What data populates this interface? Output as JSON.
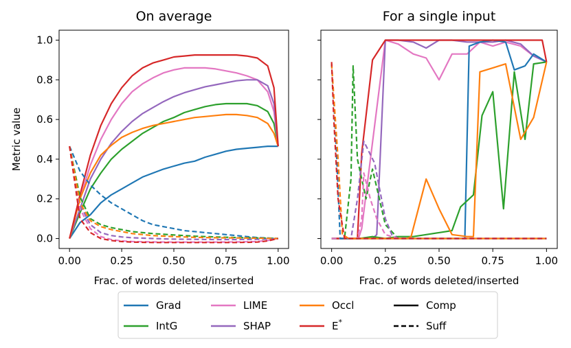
{
  "colors": {
    "Grad": "#1f77b4",
    "IntG": "#2ca02c",
    "LIME": "#e377c2",
    "SHAP": "#9467bd",
    "Occl": "#ff7f0e",
    "E*": "#d62728",
    "axis": "#000000"
  },
  "legend": {
    "placement": "bottom-center",
    "items": [
      {
        "label": "Grad",
        "color_key": "Grad",
        "style": "solid"
      },
      {
        "label": "IntG",
        "color_key": "IntG",
        "style": "solid"
      },
      {
        "label": "LIME",
        "color_key": "LIME",
        "style": "solid"
      },
      {
        "label": "SHAP",
        "color_key": "SHAP",
        "style": "solid"
      },
      {
        "label": "Occl",
        "color_key": "Occl",
        "style": "solid"
      },
      {
        "label": "E*",
        "color_key": "E*",
        "style": "solid"
      },
      {
        "label": "Comp",
        "color_key": "axis",
        "style": "solid"
      },
      {
        "label": "Suff",
        "color_key": "axis",
        "style": "dashed"
      }
    ]
  },
  "chart_data": [
    {
      "type": "line",
      "title": "On average",
      "xlabel": "Frac. of words deleted/inserted",
      "ylabel": "Metric value",
      "xlim": [
        -0.05,
        1.05
      ],
      "ylim": [
        -0.05,
        1.05
      ],
      "xticks": [
        0.0,
        0.25,
        0.5,
        0.75,
        1.0
      ],
      "xtick_labels": [
        "0.00",
        "0.25",
        "0.50",
        "0.75",
        "1.00"
      ],
      "yticks": [
        0.0,
        0.2,
        0.4,
        0.6,
        0.8,
        1.0
      ],
      "ytick_labels": [
        "0.0",
        "0.2",
        "0.4",
        "0.6",
        "0.8",
        "1.0"
      ],
      "show_yticklabels": true,
      "series": [
        {
          "name": "Grad",
          "metric": "Comp",
          "x": [
            0,
            0.05,
            0.1,
            0.15,
            0.2,
            0.25,
            0.3,
            0.35,
            0.4,
            0.45,
            0.5,
            0.55,
            0.6,
            0.65,
            0.7,
            0.75,
            0.8,
            0.85,
            0.9,
            0.95,
            1.0
          ],
          "y": [
            0.0,
            0.08,
            0.12,
            0.18,
            0.22,
            0.25,
            0.28,
            0.31,
            0.33,
            0.35,
            0.365,
            0.38,
            0.39,
            0.41,
            0.425,
            0.44,
            0.45,
            0.455,
            0.46,
            0.465,
            0.465
          ]
        },
        {
          "name": "IntG",
          "metric": "Comp",
          "x": [
            0,
            0.05,
            0.1,
            0.15,
            0.2,
            0.25,
            0.3,
            0.35,
            0.4,
            0.45,
            0.5,
            0.55,
            0.6,
            0.65,
            0.7,
            0.75,
            0.8,
            0.85,
            0.9,
            0.95,
            0.98,
            1.0
          ],
          "y": [
            0.0,
            0.13,
            0.25,
            0.33,
            0.4,
            0.45,
            0.49,
            0.53,
            0.56,
            0.59,
            0.61,
            0.635,
            0.65,
            0.665,
            0.675,
            0.68,
            0.68,
            0.68,
            0.67,
            0.64,
            0.58,
            0.465
          ]
        },
        {
          "name": "LIME",
          "metric": "Comp",
          "x": [
            0,
            0.05,
            0.1,
            0.15,
            0.2,
            0.25,
            0.3,
            0.35,
            0.4,
            0.45,
            0.5,
            0.55,
            0.6,
            0.65,
            0.7,
            0.75,
            0.8,
            0.85,
            0.9,
            0.95,
            0.98,
            1.0
          ],
          "y": [
            0.0,
            0.2,
            0.37,
            0.5,
            0.6,
            0.68,
            0.74,
            0.78,
            0.81,
            0.835,
            0.85,
            0.86,
            0.86,
            0.86,
            0.855,
            0.845,
            0.835,
            0.82,
            0.8,
            0.74,
            0.64,
            0.465
          ]
        },
        {
          "name": "SHAP",
          "metric": "Comp",
          "x": [
            0,
            0.05,
            0.1,
            0.15,
            0.2,
            0.25,
            0.3,
            0.35,
            0.4,
            0.45,
            0.5,
            0.55,
            0.6,
            0.65,
            0.7,
            0.75,
            0.8,
            0.85,
            0.9,
            0.95,
            0.98,
            1.0
          ],
          "y": [
            0.0,
            0.15,
            0.3,
            0.4,
            0.48,
            0.54,
            0.59,
            0.63,
            0.66,
            0.69,
            0.715,
            0.735,
            0.75,
            0.765,
            0.775,
            0.785,
            0.795,
            0.8,
            0.8,
            0.77,
            0.68,
            0.465
          ]
        },
        {
          "name": "Occl",
          "metric": "Comp",
          "x": [
            0,
            0.05,
            0.1,
            0.15,
            0.2,
            0.25,
            0.3,
            0.35,
            0.4,
            0.45,
            0.5,
            0.55,
            0.6,
            0.65,
            0.7,
            0.75,
            0.8,
            0.85,
            0.9,
            0.95,
            0.98,
            1.0
          ],
          "y": [
            0.0,
            0.2,
            0.33,
            0.42,
            0.47,
            0.51,
            0.535,
            0.555,
            0.57,
            0.58,
            0.59,
            0.6,
            0.61,
            0.615,
            0.62,
            0.625,
            0.625,
            0.62,
            0.61,
            0.58,
            0.53,
            0.465
          ]
        },
        {
          "name": "E*",
          "metric": "Comp",
          "x": [
            0,
            0.05,
            0.1,
            0.15,
            0.2,
            0.25,
            0.3,
            0.35,
            0.4,
            0.45,
            0.5,
            0.55,
            0.6,
            0.65,
            0.7,
            0.75,
            0.8,
            0.85,
            0.9,
            0.95,
            0.98,
            1.0
          ],
          "y": [
            0.0,
            0.22,
            0.42,
            0.57,
            0.68,
            0.76,
            0.82,
            0.86,
            0.885,
            0.9,
            0.915,
            0.92,
            0.925,
            0.925,
            0.925,
            0.925,
            0.925,
            0.92,
            0.91,
            0.87,
            0.76,
            0.465
          ]
        },
        {
          "name": "Grad",
          "metric": "Suff",
          "x": [
            0,
            0.05,
            0.1,
            0.15,
            0.2,
            0.25,
            0.3,
            0.35,
            0.4,
            0.45,
            0.5,
            0.55,
            0.6,
            0.65,
            0.7,
            0.75,
            0.8,
            0.85,
            0.9,
            0.95,
            1.0
          ],
          "y": [
            0.465,
            0.34,
            0.27,
            0.22,
            0.18,
            0.15,
            0.12,
            0.09,
            0.07,
            0.06,
            0.05,
            0.04,
            0.035,
            0.03,
            0.025,
            0.02,
            0.015,
            0.01,
            0.005,
            0.003,
            0.0
          ]
        },
        {
          "name": "IntG",
          "metric": "Suff",
          "x": [
            0,
            0.05,
            0.1,
            0.15,
            0.2,
            0.25,
            0.3,
            0.4,
            0.5,
            0.6,
            0.7,
            0.8,
            0.9,
            0.95,
            1.0
          ],
          "y": [
            0.465,
            0.21,
            0.1,
            0.07,
            0.055,
            0.045,
            0.035,
            0.025,
            0.018,
            0.012,
            0.008,
            0.005,
            0.003,
            0.002,
            0.0
          ]
        },
        {
          "name": "LIME",
          "metric": "Suff",
          "x": [
            0,
            0.05,
            0.1,
            0.15,
            0.2,
            0.25,
            0.3,
            0.4,
            0.5,
            0.6,
            0.7,
            0.8,
            0.9,
            0.95,
            1.0
          ],
          "y": [
            0.465,
            0.15,
            0.05,
            0.01,
            -0.005,
            -0.012,
            -0.015,
            -0.017,
            -0.018,
            -0.018,
            -0.018,
            -0.017,
            -0.015,
            -0.01,
            0.0
          ]
        },
        {
          "name": "SHAP",
          "metric": "Suff",
          "x": [
            0,
            0.05,
            0.1,
            0.15,
            0.2,
            0.25,
            0.3,
            0.4,
            0.5,
            0.6,
            0.7,
            0.8,
            0.9,
            0.95,
            1.0
          ],
          "y": [
            0.465,
            0.17,
            0.07,
            0.03,
            0.015,
            0.008,
            0.004,
            0.0,
            -0.003,
            -0.004,
            -0.005,
            -0.005,
            -0.004,
            -0.003,
            0.0
          ]
        },
        {
          "name": "Occl",
          "metric": "Suff",
          "x": [
            0,
            0.05,
            0.1,
            0.15,
            0.2,
            0.25,
            0.3,
            0.4,
            0.5,
            0.6,
            0.7,
            0.8,
            0.9,
            0.95,
            1.0
          ],
          "y": [
            0.465,
            0.18,
            0.09,
            0.06,
            0.045,
            0.035,
            0.025,
            0.015,
            0.01,
            0.006,
            0.004,
            0.003,
            0.002,
            0.001,
            0.0
          ]
        },
        {
          "name": "E*",
          "metric": "Suff",
          "x": [
            0,
            0.05,
            0.1,
            0.15,
            0.2,
            0.25,
            0.3,
            0.4,
            0.5,
            0.6,
            0.7,
            0.8,
            0.9,
            0.95,
            1.0
          ],
          "y": [
            0.465,
            0.1,
            0.03,
            0.0,
            -0.01,
            -0.015,
            -0.018,
            -0.02,
            -0.02,
            -0.02,
            -0.02,
            -0.02,
            -0.018,
            -0.012,
            0.0
          ]
        }
      ]
    },
    {
      "type": "line",
      "title": "For a single input",
      "xlabel": "Frac. of words deleted/inserted",
      "ylabel": "",
      "xlim": [
        -0.05,
        1.05
      ],
      "ylim": [
        -0.05,
        1.05
      ],
      "xticks": [
        0.0,
        0.25,
        0.5,
        0.75,
        1.0
      ],
      "xtick_labels": [
        "0.00",
        "0.25",
        "0.50",
        "0.75",
        "1.00"
      ],
      "yticks": [
        0.0,
        0.2,
        0.4,
        0.6,
        0.8,
        1.0
      ],
      "ytick_labels": [
        "",
        "",
        "",
        "",
        "",
        ""
      ],
      "show_yticklabels": false,
      "series": [
        {
          "name": "LIME",
          "metric": "Comp",
          "x": [
            0,
            0.125,
            0.14,
            0.25,
            0.31,
            0.38,
            0.44,
            0.5,
            0.56,
            0.63,
            0.69,
            0.75,
            0.81,
            0.88,
            0.94,
            1.0
          ],
          "y": [
            0.0,
            0.0,
            0.05,
            1.0,
            0.98,
            0.93,
            0.91,
            0.8,
            0.93,
            0.93,
            0.99,
            0.97,
            0.99,
            0.97,
            0.92,
            0.89
          ]
        },
        {
          "name": "SHAP",
          "metric": "Comp",
          "x": [
            0,
            0.19,
            0.21,
            0.25,
            0.31,
            0.38,
            0.44,
            0.5,
            0.56,
            0.63,
            0.69,
            0.75,
            0.81,
            0.88,
            0.94,
            1.0
          ],
          "y": [
            0.0,
            0.0,
            0.02,
            1.0,
            1.0,
            0.99,
            0.96,
            1.0,
            1.0,
            0.99,
            0.99,
            0.99,
            1.0,
            0.98,
            0.92,
            0.89
          ]
        },
        {
          "name": "Grad",
          "metric": "Comp",
          "x": [
            0,
            0.5,
            0.62,
            0.64,
            0.69,
            0.75,
            0.81,
            0.85,
            0.9,
            0.94,
            1.0
          ],
          "y": [
            0.0,
            0.0,
            0.0,
            0.97,
            0.99,
            1.0,
            0.99,
            0.85,
            0.87,
            0.93,
            0.89
          ]
        },
        {
          "name": "IntG",
          "metric": "Comp",
          "x": [
            0,
            0.13,
            0.19,
            0.25,
            0.31,
            0.38,
            0.44,
            0.5,
            0.56,
            0.6,
            0.66,
            0.7,
            0.75,
            0.8,
            0.85,
            0.9,
            0.94,
            1.0
          ],
          "y": [
            0.0,
            0.0,
            0.01,
            0.0,
            0.01,
            0.01,
            0.02,
            0.03,
            0.04,
            0.16,
            0.22,
            0.62,
            0.74,
            0.15,
            0.84,
            0.5,
            0.88,
            0.89
          ]
        },
        {
          "name": "Occl",
          "metric": "Comp",
          "x": [
            0,
            0.35,
            0.37,
            0.44,
            0.5,
            0.56,
            0.63,
            0.66,
            0.69,
            0.75,
            0.81,
            0.88,
            0.94,
            1.0
          ],
          "y": [
            0.0,
            0.0,
            0.01,
            0.3,
            0.15,
            0.02,
            0.01,
            0.01,
            0.84,
            0.86,
            0.88,
            0.5,
            0.61,
            0.89
          ]
        },
        {
          "name": "E*",
          "metric": "Comp",
          "x": [
            0,
            0.12,
            0.14,
            0.19,
            0.25,
            0.5,
            0.75,
            0.98,
            1.0
          ],
          "y": [
            0.0,
            0.0,
            0.43,
            0.9,
            1.0,
            1.0,
            1.0,
            1.0,
            0.89
          ]
        },
        {
          "name": "IntG",
          "metric": "Suff",
          "x": [
            0,
            0.06,
            0.09,
            0.1,
            0.12,
            0.16,
            0.19,
            0.25,
            0.31,
            0.37,
            1.0
          ],
          "y": [
            0.0,
            0.0,
            0.3,
            0.87,
            0.4,
            0.2,
            0.35,
            0.07,
            0.0,
            0.0,
            0.0
          ]
        },
        {
          "name": "SHAP",
          "metric": "Suff",
          "x": [
            0,
            0.09,
            0.12,
            0.15,
            0.2,
            0.25,
            0.28,
            0.31,
            1.0
          ],
          "y": [
            0.0,
            0.0,
            0.2,
            0.49,
            0.38,
            0.1,
            0.02,
            0.0,
            0.0
          ]
        },
        {
          "name": "LIME",
          "metric": "Suff",
          "x": [
            0,
            0.12,
            0.14,
            0.15,
            0.18,
            0.21,
            0.25,
            0.31,
            1.0
          ],
          "y": [
            0.0,
            0.0,
            0.1,
            0.33,
            0.2,
            0.1,
            0.02,
            0.0,
            0.0
          ]
        },
        {
          "name": "Grad",
          "metric": "Suff",
          "x": [
            0,
            0.02,
            0.04,
            0.06,
            0.08,
            1.0
          ],
          "y": [
            0.88,
            0.5,
            0.0,
            0.0,
            0.0,
            0.0
          ]
        },
        {
          "name": "Occl",
          "metric": "Suff",
          "x": [
            0,
            0.03,
            0.05,
            0.08,
            1.0
          ],
          "y": [
            0.88,
            0.4,
            0.02,
            0.0,
            0.0
          ]
        },
        {
          "name": "E*",
          "metric": "Suff",
          "x": [
            0,
            0.01,
            0.03,
            0.06,
            1.0
          ],
          "y": [
            0.89,
            0.6,
            0.2,
            0.0,
            0.0
          ]
        }
      ]
    }
  ]
}
